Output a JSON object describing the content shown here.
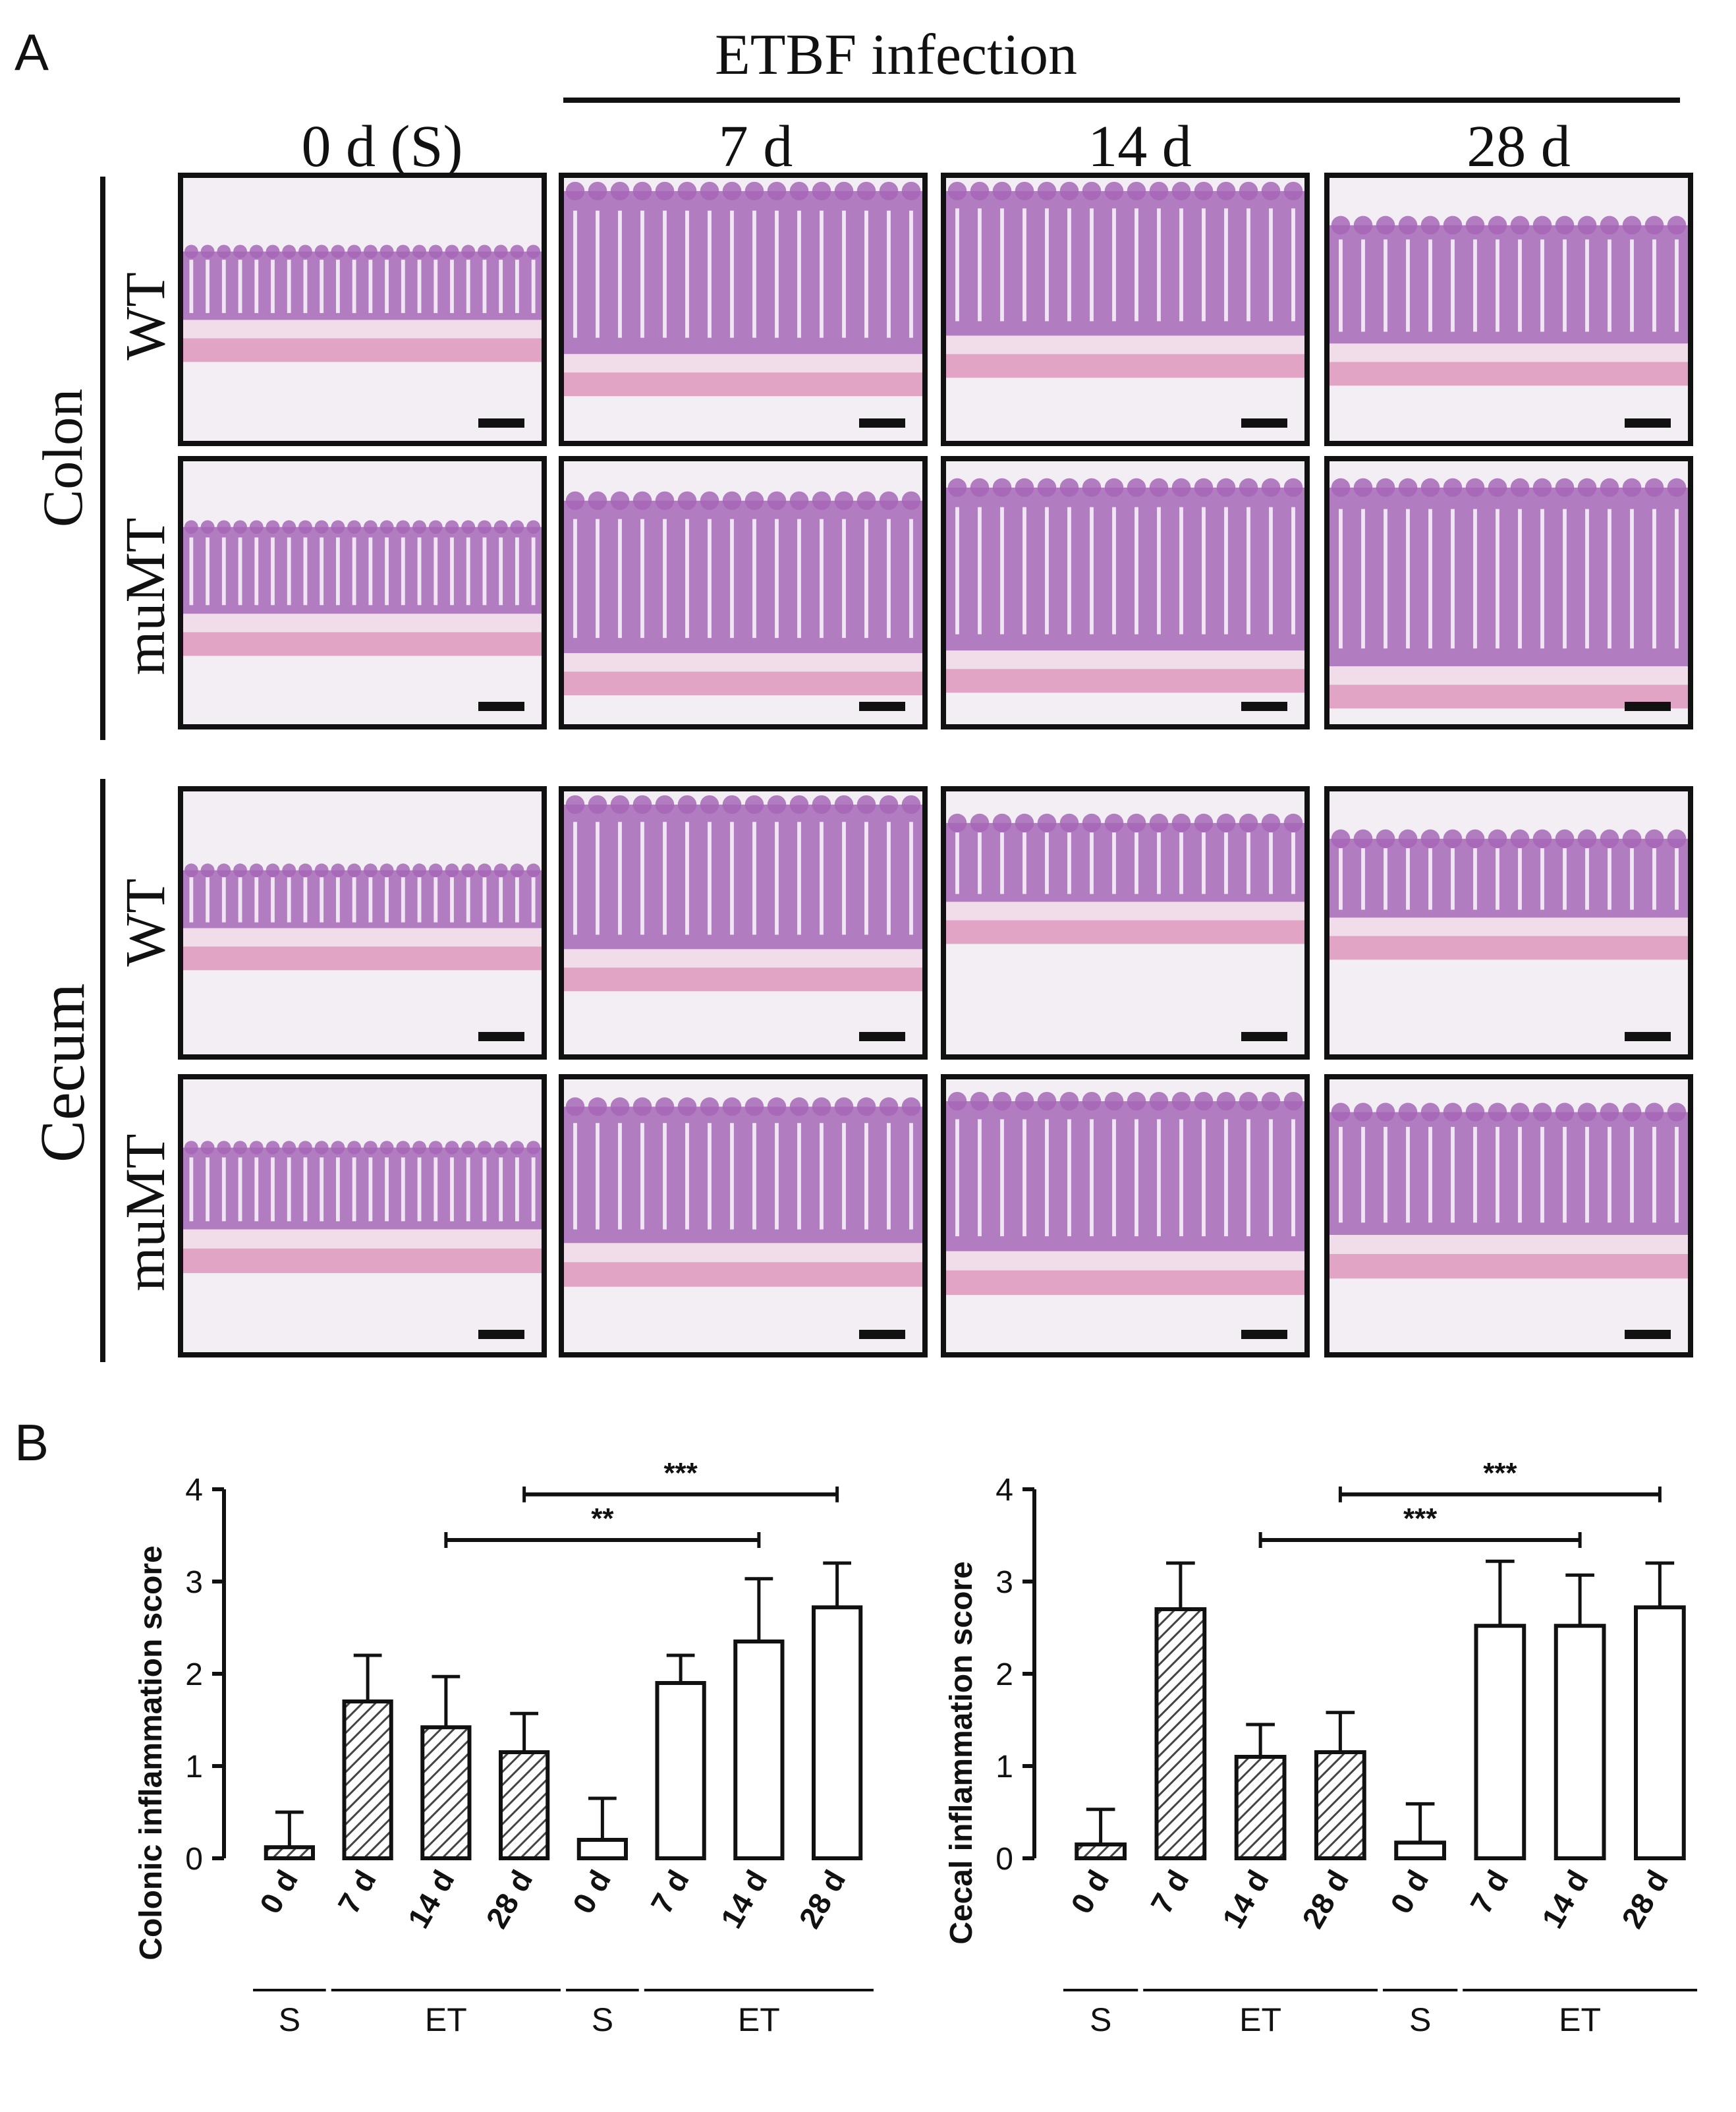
{
  "panel_a": {
    "letter": "A",
    "header": "ETBF infection",
    "columns": [
      "0 d (S)",
      "7 d",
      "14 d",
      "28 d"
    ],
    "tissues": [
      {
        "name": "Colon",
        "strains": [
          "WT",
          "muMT"
        ]
      },
      {
        "name": "Cecum",
        "strains": [
          "WT",
          "muMT"
        ]
      }
    ]
  },
  "panel_b": {
    "letter": "B"
  },
  "colors": {
    "tissue_bg": "#f3eef4",
    "epithelium": "#a667b6",
    "crypt_lumen": "#f6f1f7",
    "muscle": "#e2a4c4",
    "submucosa": "#f1dde9",
    "axis": "#111111",
    "hatch": "#444444"
  },
  "chart_data": [
    {
      "type": "bar",
      "ylabel": "Colonic inflammation score",
      "ylim": [
        0,
        4
      ],
      "yticks": [
        "0",
        "1",
        "2",
        "3",
        "4"
      ],
      "categories": [
        "0 d",
        "7 d",
        "14 d",
        "28 d",
        "0 d",
        "7 d",
        "14 d",
        "28 d"
      ],
      "values": [
        0.12,
        1.7,
        1.42,
        1.15,
        0.2,
        1.9,
        2.35,
        2.72
      ],
      "errors": [
        0.38,
        0.5,
        0.55,
        0.42,
        0.45,
        0.3,
        0.68,
        0.48
      ],
      "fill": [
        "hatched",
        "hatched",
        "hatched",
        "hatched",
        "open",
        "open",
        "open",
        "open"
      ],
      "groups": [
        {
          "label": "S",
          "from": 0,
          "to": 0
        },
        {
          "label": "ET",
          "from": 1,
          "to": 3
        },
        {
          "label": "S",
          "from": 4,
          "to": 4
        },
        {
          "label": "ET",
          "from": 5,
          "to": 7
        }
      ],
      "significance": [
        {
          "from": 3,
          "to": 7,
          "label": "***",
          "y": 3.48
        },
        {
          "from": 2,
          "to": 6,
          "label": "**",
          "y": 3.45
        }
      ]
    },
    {
      "type": "bar",
      "ylabel": "Cecal inflammation score",
      "ylim": [
        0,
        4
      ],
      "yticks": [
        "0",
        "1",
        "2",
        "3",
        "4"
      ],
      "categories": [
        "0 d",
        "7 d",
        "14 d",
        "28 d",
        "0 d",
        "7 d",
        "14 d",
        "28 d"
      ],
      "values": [
        0.15,
        2.7,
        1.1,
        1.15,
        0.17,
        2.52,
        2.52,
        2.72
      ],
      "errors": [
        0.38,
        0.5,
        0.35,
        0.43,
        0.42,
        0.7,
        0.55,
        0.48
      ],
      "fill": [
        "hatched",
        "hatched",
        "hatched",
        "hatched",
        "open",
        "open",
        "open",
        "open"
      ],
      "groups": [
        {
          "label": "S",
          "from": 0,
          "to": 0
        },
        {
          "label": "ET",
          "from": 1,
          "to": 3
        },
        {
          "label": "S",
          "from": 4,
          "to": 4
        },
        {
          "label": "ET",
          "from": 5,
          "to": 7
        }
      ],
      "significance": [
        {
          "from": 3,
          "to": 7,
          "label": "***",
          "y": 3.48
        },
        {
          "from": 2,
          "to": 6,
          "label": "***",
          "y": 3.45
        }
      ]
    }
  ]
}
